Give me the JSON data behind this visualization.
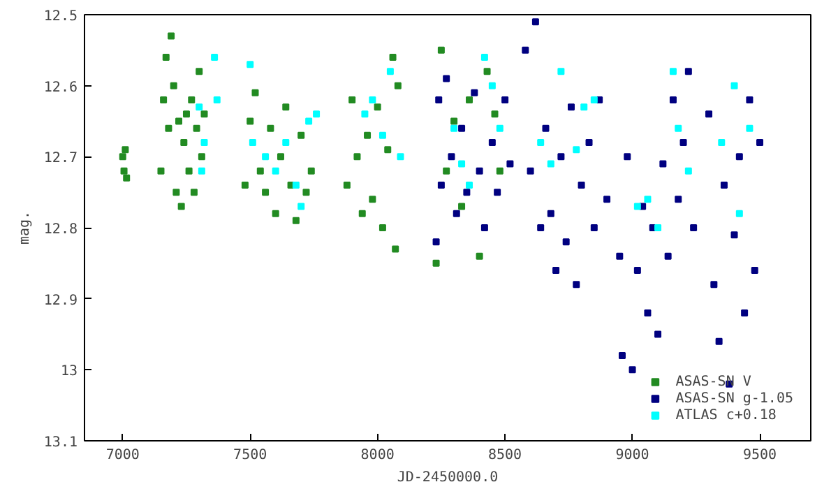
{
  "chart_data": {
    "type": "scatter",
    "xlabel": "JD-2450000.0",
    "ylabel": "mag.",
    "xlim": [
      6850,
      9700
    ],
    "ylim": [
      13.1,
      12.5
    ],
    "xticks": [
      7000,
      7500,
      8000,
      8500,
      9000,
      9500
    ],
    "yticks": [
      12.5,
      12.6,
      12.7,
      12.8,
      12.9,
      13,
      13.1
    ],
    "grid": false,
    "legend": "bottom right",
    "marker": "square",
    "series": [
      {
        "name": "ASAS-SN V",
        "color": "#228b22",
        "x": [
          7000,
          7005,
          7010,
          7015,
          7150,
          7160,
          7170,
          7180,
          7190,
          7200,
          7210,
          7220,
          7230,
          7240,
          7250,
          7260,
          7270,
          7280,
          7290,
          7300,
          7310,
          7320,
          7480,
          7500,
          7520,
          7540,
          7560,
          7580,
          7600,
          7620,
          7640,
          7660,
          7680,
          7700,
          7720,
          7740,
          7880,
          7900,
          7920,
          7940,
          7960,
          7980,
          8000,
          8020,
          8040,
          8060,
          8070,
          8080,
          8230,
          8250,
          8270,
          8300,
          8330,
          8360,
          8400,
          8430,
          8460,
          8480
        ],
        "values": [
          12.7,
          12.72,
          12.69,
          12.73,
          12.72,
          12.62,
          12.56,
          12.66,
          12.53,
          12.6,
          12.75,
          12.65,
          12.77,
          12.68,
          12.64,
          12.72,
          12.62,
          12.75,
          12.66,
          12.58,
          12.7,
          12.64,
          12.74,
          12.65,
          12.61,
          12.72,
          12.75,
          12.66,
          12.78,
          12.7,
          12.63,
          12.74,
          12.79,
          12.67,
          12.75,
          12.72,
          12.74,
          12.62,
          12.7,
          12.78,
          12.67,
          12.76,
          12.63,
          12.8,
          12.69,
          12.56,
          12.83,
          12.6,
          12.85,
          12.55,
          12.72,
          12.65,
          12.77,
          12.62,
          12.84,
          12.58,
          12.64,
          12.72
        ]
      },
      {
        "name": "ASAS-SN g-1.05",
        "color": "#000080",
        "x": [
          8230,
          8240,
          8250,
          8270,
          8290,
          8310,
          8330,
          8350,
          8380,
          8400,
          8420,
          8450,
          8470,
          8500,
          8520,
          8580,
          8600,
          8620,
          8640,
          8660,
          8680,
          8700,
          8720,
          8740,
          8760,
          8780,
          8800,
          8830,
          8850,
          8870,
          8900,
          8950,
          8960,
          8980,
          9000,
          9020,
          9040,
          9060,
          9080,
          9100,
          9120,
          9140,
          9160,
          9180,
          9200,
          9220,
          9240,
          9300,
          9320,
          9340,
          9360,
          9380,
          9400,
          9420,
          9440,
          9460,
          9480,
          9500
        ],
        "values": [
          12.82,
          12.62,
          12.74,
          12.59,
          12.7,
          12.78,
          12.66,
          12.75,
          12.61,
          12.72,
          12.8,
          12.68,
          12.75,
          12.62,
          12.71,
          12.55,
          12.72,
          12.51,
          12.8,
          12.66,
          12.78,
          12.86,
          12.7,
          12.82,
          12.63,
          12.88,
          12.74,
          12.68,
          12.8,
          12.62,
          12.76,
          12.84,
          12.98,
          12.7,
          13.0,
          12.86,
          12.77,
          12.92,
          12.8,
          12.95,
          12.71,
          12.84,
          12.62,
          12.76,
          12.68,
          12.58,
          12.8,
          12.64,
          12.88,
          12.96,
          12.74,
          13.02,
          12.81,
          12.7,
          12.92,
          12.62,
          12.86,
          12.68
        ]
      },
      {
        "name": "ATLAS c+0.18",
        "color": "#00ffff",
        "x": [
          7300,
          7310,
          7320,
          7360,
          7370,
          7500,
          7510,
          7560,
          7600,
          7640,
          7680,
          7700,
          7730,
          7760,
          7950,
          7980,
          8020,
          8050,
          8090,
          8300,
          8330,
          8360,
          8420,
          8450,
          8480,
          8640,
          8680,
          8720,
          8780,
          8810,
          8850,
          9020,
          9060,
          9100,
          9160,
          9180,
          9220,
          9350,
          9400,
          9420,
          9460
        ],
        "values": [
          12.63,
          12.72,
          12.68,
          12.56,
          12.62,
          12.57,
          12.68,
          12.7,
          12.72,
          12.68,
          12.74,
          12.77,
          12.65,
          12.64,
          12.64,
          12.62,
          12.67,
          12.58,
          12.7,
          12.66,
          12.71,
          12.74,
          12.56,
          12.6,
          12.66,
          12.68,
          12.71,
          12.58,
          12.69,
          12.63,
          12.62,
          12.77,
          12.76,
          12.8,
          12.58,
          12.66,
          12.72,
          12.68,
          12.6,
          12.78,
          12.66
        ]
      }
    ]
  }
}
